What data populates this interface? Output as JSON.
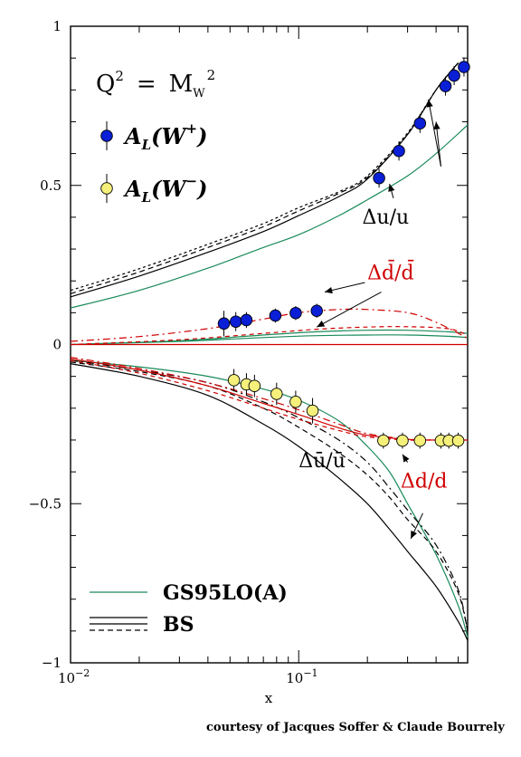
{
  "chart_data": {
    "type": "scatter",
    "title": "",
    "xlabel": "x",
    "ylabel": "",
    "xscale": "log",
    "xlim": [
      0.01,
      0.55
    ],
    "ylim": [
      -1,
      1
    ],
    "grid": false,
    "x_tick_labels": [
      {
        "value": 0.01,
        "base": "10",
        "exp": "−2"
      },
      {
        "value": 0.1,
        "base": "10",
        "exp": "−1"
      }
    ],
    "y_tick_labels": [
      {
        "value": 1,
        "text": "1"
      },
      {
        "value": 0.5,
        "text": "0.5"
      },
      {
        "value": 0,
        "text": "0"
      },
      {
        "value": -0.5,
        "text": "−0.5"
      },
      {
        "value": -1,
        "text": "−1"
      }
    ],
    "scale_label": {
      "q": "Q",
      "q_exp": "2",
      "eq": "=",
      "m": "M",
      "m_sub": "W",
      "m_exp": "2"
    },
    "series": [
      {
        "name": "A_L(W+)",
        "label_main": "A",
        "label_sub": "L",
        "label_open": "(W",
        "label_sup": "+",
        "label_close": ")",
        "marker": "filled-circle",
        "color": "#0a1fd6",
        "points": [
          {
            "x": 0.047,
            "y": 0.066,
            "err": 0.04
          },
          {
            "x": 0.053,
            "y": 0.072,
            "err": 0.03
          },
          {
            "x": 0.059,
            "y": 0.077,
            "err": 0.025
          },
          {
            "x": 0.079,
            "y": 0.091,
            "err": 0.022
          },
          {
            "x": 0.097,
            "y": 0.099,
            "err": 0.022
          },
          {
            "x": 0.12,
            "y": 0.106,
            "err": 0.022
          },
          {
            "x": 0.225,
            "y": 0.523,
            "err": 0.03
          },
          {
            "x": 0.275,
            "y": 0.608,
            "err": 0.03
          },
          {
            "x": 0.34,
            "y": 0.695,
            "err": 0.03
          },
          {
            "x": 0.44,
            "y": 0.812,
            "err": 0.03
          },
          {
            "x": 0.48,
            "y": 0.845,
            "err": 0.03
          },
          {
            "x": 0.53,
            "y": 0.872,
            "err": 0.03
          }
        ]
      },
      {
        "name": "A_L(W−)",
        "label_main": "A",
        "label_sub": "L",
        "label_open": "(W",
        "label_sup": "−",
        "label_close": ")",
        "marker": "open-yellow-circle",
        "color": "#f4f07a",
        "points": [
          {
            "x": 0.052,
            "y": -0.112,
            "err": 0.035
          },
          {
            "x": 0.059,
            "y": -0.125,
            "err": 0.035
          },
          {
            "x": 0.064,
            "y": -0.13,
            "err": 0.035
          },
          {
            "x": 0.08,
            "y": -0.155,
            "err": 0.035
          },
          {
            "x": 0.097,
            "y": -0.18,
            "err": 0.035
          },
          {
            "x": 0.115,
            "y": -0.208,
            "err": 0.04
          },
          {
            "x": 0.235,
            "y": -0.302,
            "err": 0.025
          },
          {
            "x": 0.285,
            "y": -0.302,
            "err": 0.025
          },
          {
            "x": 0.34,
            "y": -0.302,
            "err": 0.025
          },
          {
            "x": 0.42,
            "y": -0.302,
            "err": 0.025
          },
          {
            "x": 0.455,
            "y": -0.302,
            "err": 0.025
          },
          {
            "x": 0.5,
            "y": -0.302,
            "err": 0.025
          }
        ]
      }
    ],
    "curves": [
      {
        "name": "GS95LO(A)",
        "role": "du",
        "color": "#1a8a5a",
        "dash": "solid",
        "x": [
          0.01,
          0.02,
          0.04,
          0.07,
          0.1,
          0.15,
          0.2,
          0.3,
          0.4,
          0.55
        ],
        "y": [
          0.115,
          0.17,
          0.24,
          0.305,
          0.345,
          0.405,
          0.455,
          0.53,
          0.6,
          0.69
        ]
      },
      {
        "name": "BS",
        "role": "du",
        "color": "#000000",
        "dash": "solid",
        "x": [
          0.01,
          0.02,
          0.04,
          0.07,
          0.1,
          0.15,
          0.2,
          0.3,
          0.4,
          0.5
        ],
        "y": [
          0.15,
          0.215,
          0.29,
          0.355,
          0.405,
          0.465,
          0.52,
          0.66,
          0.8,
          0.885
        ]
      },
      {
        "name": "BS",
        "role": "du",
        "color": "#000000",
        "dash": "6,4",
        "x": [
          0.01,
          0.02,
          0.04,
          0.07,
          0.1,
          0.15,
          0.2,
          0.3,
          0.4,
          0.5
        ],
        "y": [
          0.16,
          0.228,
          0.305,
          0.37,
          0.42,
          0.475,
          0.525,
          0.66,
          0.8,
          0.885
        ]
      },
      {
        "name": "BS",
        "role": "du",
        "color": "#000000",
        "dash": "3,3",
        "x": [
          0.01,
          0.02,
          0.04,
          0.07,
          0.1,
          0.15,
          0.2,
          0.3,
          0.4,
          0.5
        ],
        "y": [
          0.17,
          0.238,
          0.315,
          0.38,
          0.43,
          0.48,
          0.53,
          0.665,
          0.8,
          0.885
        ]
      },
      {
        "name": "GS95LO(A)",
        "role": "dd",
        "color": "#1a8a5a",
        "dash": "solid",
        "x": [
          0.01,
          0.03,
          0.07,
          0.12,
          0.2,
          0.3,
          0.45,
          0.55
        ],
        "y": [
          0.0,
          0.012,
          0.03,
          0.04,
          0.045,
          0.045,
          0.04,
          0.035
        ]
      },
      {
        "name": "GS95LO(A)",
        "role": "dd",
        "color": "#1a8a5a",
        "dash": "solid",
        "x": [
          0.01,
          0.03,
          0.07,
          0.12,
          0.2,
          0.3,
          0.45,
          0.55
        ],
        "y": [
          0.0,
          0.01,
          0.022,
          0.028,
          0.03,
          0.03,
          0.026,
          0.022
        ]
      },
      {
        "name": "BS",
        "role": "dd",
        "color": "#d00000",
        "dash": "8,4,2,4",
        "x": [
          0.01,
          0.02,
          0.04,
          0.07,
          0.1,
          0.15,
          0.2,
          0.3,
          0.4,
          0.55
        ],
        "y": [
          0.01,
          0.025,
          0.05,
          0.08,
          0.1,
          0.11,
          0.11,
          0.1,
          0.07,
          0.02
        ]
      },
      {
        "name": "BS",
        "role": "dd",
        "color": "#d00000",
        "dash": "5,4",
        "x": [
          0.01,
          0.03,
          0.07,
          0.12,
          0.2,
          0.3,
          0.45,
          0.55
        ],
        "y": [
          0.0,
          0.015,
          0.035,
          0.048,
          0.055,
          0.056,
          0.05,
          0.03
        ]
      },
      {
        "name": "BS",
        "role": "dd",
        "color": "#d00000",
        "dash": "solid",
        "x": [
          0.01,
          0.55
        ],
        "y": [
          0.0,
          0.0
        ]
      },
      {
        "name": "GS95LO(A)",
        "role": "dbaru",
        "color": "#1a8a5a",
        "dash": "solid",
        "x": [
          0.01,
          0.02,
          0.04,
          0.07,
          0.1,
          0.15,
          0.2,
          0.25,
          0.3,
          0.4,
          0.5,
          0.55
        ],
        "y": [
          -0.05,
          -0.07,
          -0.1,
          -0.14,
          -0.175,
          -0.24,
          -0.32,
          -0.4,
          -0.5,
          -0.66,
          -0.82,
          -0.92
        ]
      },
      {
        "name": "BS",
        "role": "dbaru",
        "color": "#000000",
        "dash": "solid",
        "x": [
          0.01,
          0.02,
          0.04,
          0.07,
          0.1,
          0.15,
          0.2,
          0.25,
          0.3,
          0.4,
          0.5,
          0.55
        ],
        "y": [
          -0.06,
          -0.1,
          -0.16,
          -0.25,
          -0.32,
          -0.42,
          -0.5,
          -0.58,
          -0.65,
          -0.76,
          -0.87,
          -0.93
        ]
      },
      {
        "name": "BS",
        "role": "dbaru",
        "color": "#000000",
        "dash": "6,4",
        "x": [
          0.01,
          0.02,
          0.04,
          0.07,
          0.1,
          0.15,
          0.2,
          0.25,
          0.3,
          0.4,
          0.5,
          0.55
        ],
        "y": [
          -0.055,
          -0.085,
          -0.13,
          -0.2,
          -0.26,
          -0.34,
          -0.41,
          -0.48,
          -0.55,
          -0.65,
          -0.78,
          -0.9
        ]
      },
      {
        "name": "BS",
        "role": "dbaru",
        "color": "#000000",
        "dash": "8,4,2,4",
        "x": [
          0.01,
          0.02,
          0.04,
          0.07,
          0.1,
          0.15,
          0.2,
          0.25,
          0.3,
          0.4,
          0.5,
          0.55
        ],
        "y": [
          -0.05,
          -0.08,
          -0.12,
          -0.18,
          -0.23,
          -0.3,
          -0.37,
          -0.45,
          -0.52,
          -0.63,
          -0.77,
          -0.9
        ]
      },
      {
        "name": "GS95LO(A)",
        "role": "dd_over_d",
        "color": "#d00000",
        "dash": "solid",
        "x": [
          0.01,
          0.02,
          0.04,
          0.07,
          0.1,
          0.15,
          0.2,
          0.3,
          0.4,
          0.55
        ],
        "y": [
          -0.045,
          -0.08,
          -0.13,
          -0.185,
          -0.22,
          -0.262,
          -0.285,
          -0.298,
          -0.3,
          -0.3
        ]
      },
      {
        "name": "BS",
        "role": "dd_over_d",
        "color": "#d00000",
        "dash": "5,4",
        "x": [
          0.01,
          0.02,
          0.04,
          0.07,
          0.1,
          0.15,
          0.2,
          0.3,
          0.4,
          0.55
        ],
        "y": [
          -0.05,
          -0.09,
          -0.145,
          -0.2,
          -0.235,
          -0.27,
          -0.29,
          -0.3,
          -0.3,
          -0.3
        ]
      },
      {
        "name": "BS",
        "role": "dd_over_d",
        "color": "#d00000",
        "dash": "8,4,2,4",
        "x": [
          0.01,
          0.02,
          0.04,
          0.07,
          0.1,
          0.15,
          0.2,
          0.3,
          0.4,
          0.55
        ],
        "y": [
          -0.04,
          -0.075,
          -0.12,
          -0.17,
          -0.205,
          -0.25,
          -0.28,
          -0.297,
          -0.3,
          -0.3
        ]
      }
    ],
    "annotations": [
      {
        "id": "du_over_u",
        "text": "Δu/u",
        "color": "#000000",
        "x": 0.19,
        "y": 0.38,
        "arrows": [
          {
            "from": [
              0.26,
              0.46
            ],
            "to": [
              0.25,
              0.505
            ]
          },
          {
            "from": [
              0.42,
              0.56
            ],
            "to": [
              0.37,
              0.77
            ]
          },
          {
            "from": [
              0.42,
              0.56
            ],
            "to": [
              0.4,
              0.7
            ]
          }
        ]
      },
      {
        "id": "dbard_over_dbar",
        "text": "Δd̄/d̄",
        "color": "#d00000",
        "x": 0.2,
        "y": 0.205,
        "arrows": [
          {
            "from": [
              0.195,
              0.195
            ],
            "to": [
              0.13,
              0.165
            ]
          },
          {
            "from": [
              0.23,
              0.165
            ],
            "to": [
              0.12,
              0.055
            ]
          }
        ]
      },
      {
        "id": "dbaru_over_ubar",
        "text": "Δū/ū",
        "color": "#000000",
        "x": 0.1,
        "y": -0.385,
        "arrows": []
      },
      {
        "id": "dd_over_d",
        "text": "Δd/d",
        "color": "#d00000",
        "x": 0.28,
        "y": -0.45,
        "arrows": [
          {
            "from": [
              0.3,
              -0.37
            ],
            "to": [
              0.285,
              -0.345
            ]
          },
          {
            "from": [
              0.35,
              -0.53
            ],
            "to": [
              0.31,
              -0.61
            ]
          }
        ]
      }
    ],
    "legend_lines": [
      {
        "label": "GS95LO(A)",
        "lines": [
          {
            "color": "#1a8a5a",
            "dash": "solid"
          }
        ]
      },
      {
        "label": "BS",
        "lines": [
          {
            "color": "#000000",
            "dash": "solid"
          },
          {
            "color": "#000000",
            "dash": "solid"
          },
          {
            "color": "#000000",
            "dash": "6,4"
          }
        ]
      }
    ]
  },
  "credit": "courtesy of  Jacques Soffer & Claude Bourrely"
}
